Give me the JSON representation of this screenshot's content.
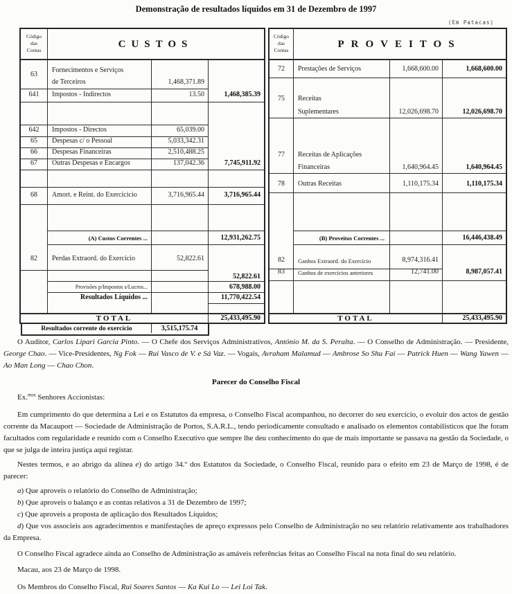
{
  "page": {
    "title": "Demonstração de resultados líquidos em 31 de Dezembro de 1997",
    "unit_note": "(Em Patacas)"
  },
  "custos": {
    "title": "CUSTOS",
    "code_header": [
      "Código",
      "das",
      "Contas"
    ],
    "r63": {
      "code": "63",
      "l1": "Fornecimentos e Serviços",
      "l2": "de Terceiros",
      "amt": "1,468,371.89"
    },
    "r641": {
      "code": "641",
      "desc": "Impostos - Indirectos",
      "amt": "13.50",
      "sum": "1,468,385.39"
    },
    "r642": {
      "code": "642",
      "desc": "Impostos - Directos",
      "amt": "65,039.00"
    },
    "r65": {
      "code": "65",
      "desc": "Despesas c/ o Pessoal",
      "amt": "5,033,342.31"
    },
    "r66": {
      "code": "66",
      "desc": "Despesas Financeiras",
      "amt": "2,510,488.25"
    },
    "r67": {
      "code": "67",
      "desc": "Outras Despesas e Encargos",
      "amt": "137,042.36",
      "sum": "7,745,911.92"
    },
    "r68": {
      "code": "68",
      "desc": "Amort. e Reint. do Exercicicio",
      "amt": "3,716,965.44",
      "sum": "3,716,965.44"
    },
    "correntes": {
      "label": "(A) Custos Correntes ...",
      "sum": "12,931,262.75"
    },
    "r82": {
      "code": "82",
      "desc": "Perdas Extraord. do Exercício",
      "amt": "52,822.61",
      "sum": "52,822.61"
    },
    "provisoes": {
      "label": "Provisões p/Impostos s/Lucros...",
      "sum": "678,988.00"
    },
    "liquidos": {
      "label": "Resultados Líquidos ...",
      "sum": "11,770,422.54"
    },
    "total": {
      "label": "TOTAL",
      "sum": "25,433,495.90"
    },
    "corrente": {
      "label": "Resultados corrente do exercício",
      "value": "3,515,175.74"
    }
  },
  "proveitos": {
    "title": "PROVEITOS",
    "code_header": [
      "Código",
      "das",
      "Contas"
    ],
    "r72": {
      "code": "72",
      "desc": "Prestações de Serviços",
      "amt": "1,668,600.00",
      "sum": "1,668,600.00"
    },
    "r75": {
      "code": "75",
      "l1": "Receitas",
      "l2": "Suplementares",
      "amt": "12,026,698.70",
      "sum": "12,026,698.70"
    },
    "r77": {
      "code": "77",
      "l1": "Receitas de Aplicações",
      "l2": "Financeiras",
      "amt": "1,640,964.45",
      "sum": "1,640,964.45"
    },
    "r78": {
      "code": "78",
      "desc": "Outras Receitas",
      "amt": "1,110,175.34",
      "sum": "1,110,175.34"
    },
    "correntes": {
      "label": "(B)  Proveitos Correntes ...",
      "sum": "16,446,438.49"
    },
    "r82": {
      "code": "82",
      "desc": "Ganhos Extraord. do Exercício",
      "amt": "8,974,316.41"
    },
    "r83": {
      "code": "83",
      "desc": "Ganhos de exercícios anteriores",
      "amt": "12,741.00",
      "sum": "8,987,057.41"
    },
    "total": {
      "label": "TOTAL",
      "sum": "25,433,495.90"
    }
  },
  "body": {
    "signatures": [
      {
        "t": "O Auditor, "
      },
      {
        "t": "Carlos Lipari Garcia Pinto",
        "i": true
      },
      {
        "t": ". — O Chefe dos Serviços Administrativos, "
      },
      {
        "t": "António M. da S. Peralta",
        "i": true
      },
      {
        "t": ". — O Conselho de Administração. — Presidente, "
      },
      {
        "t": "George Chao",
        "i": true
      },
      {
        "t": ". — Vice-Presidentes, "
      },
      {
        "t": "Ng Fok",
        "i": true
      },
      {
        "t": " — "
      },
      {
        "t": "Rui Vasco de V. e Sá Vaz",
        "i": true
      },
      {
        "t": ". — Vogais, "
      },
      {
        "t": "Avraham Malamud",
        "i": true
      },
      {
        "t": " — "
      },
      {
        "t": "Ambrose So Shu Fai",
        "i": true
      },
      {
        "t": " — "
      },
      {
        "t": "Patrick Huen",
        "i": true
      },
      {
        "t": " — "
      },
      {
        "t": "Wang Yawen",
        "i": true
      },
      {
        "t": " — "
      },
      {
        "t": "Ao Man Long",
        "i": true
      },
      {
        "t": " — "
      },
      {
        "t": "Chao Chon",
        "i": true
      },
      {
        "t": "."
      }
    ],
    "parecer_heading": "Parecer do Conselho Fiscal",
    "salutation": [
      {
        "t": "Ex."
      },
      {
        "t": "mos",
        "sup": true
      },
      {
        "t": " Senhores Accionistas:"
      }
    ],
    "p_compliance": "Em cumprimento do que determina a Lei e os Estatutos da empresa, o Conselho Fiscal acompanhou, no decorrer do seu exercício, o evoluir dos actos de gestão corrente da Macauport — Sociedade de Administração de Portos, S.A.R.L., tendo periodicamente consultado e analisado os elementos contabilísticos que lhe foram facultados com regularidade e reunido com o Conselho Executivo que sempre lhe deu conhecimento do que de mais importante se passava na gestão da Sociedade, o que se julga de inteira justiça aqui registar.",
    "p_terms": [
      {
        "t": "Nestes termos, e ao abrigo da alínea "
      },
      {
        "t": "e",
        "i": true
      },
      {
        "t": ") do artigo 34.º dos Estatutos da Sociedade, o Conselho Fiscal, reunido para o efeito em 23 de Março de 1998, é de parecer:"
      }
    ],
    "items": {
      "a": [
        {
          "t": "a",
          "i": true
        },
        {
          "t": ") Que aproveis o relatório do Conselho de Administração;"
        }
      ],
      "b": [
        {
          "t": "b",
          "i": true
        },
        {
          "t": ") Que aproveis o balanço e as contas relativos a 31 de Dezembro de 1997;"
        }
      ],
      "c": [
        {
          "t": "c",
          "i": true
        },
        {
          "t": ") Que aproveis a proposta de aplicação dos Resultados Líquidos;"
        }
      ],
      "d": [
        {
          "t": "d",
          "i": true
        },
        {
          "t": ") Que vos associeis aos agradecimentos e manifestações de apreço expressos pelo Conselho de Administração no seu relatório relativamente aos trabalhadores da Empresa."
        }
      ]
    },
    "p_thanks": "O Conselho Fiscal agradece ainda ao Conselho de Administração as amáveis referências feitas ao Conselho Fiscal na nota final do seu relatório.",
    "place_date": "Macau, aos 23 de Março de 1998.",
    "members": [
      {
        "t": "Os Membros do Conselho Fiscal, "
      },
      {
        "t": "Rui Soares Santos",
        "i": true
      },
      {
        "t": " — "
      },
      {
        "t": "Ka Kui Lo",
        "i": true
      },
      {
        "t": " — "
      },
      {
        "t": "Lei Loi Tak",
        "i": true
      },
      {
        "t": "."
      }
    ]
  }
}
